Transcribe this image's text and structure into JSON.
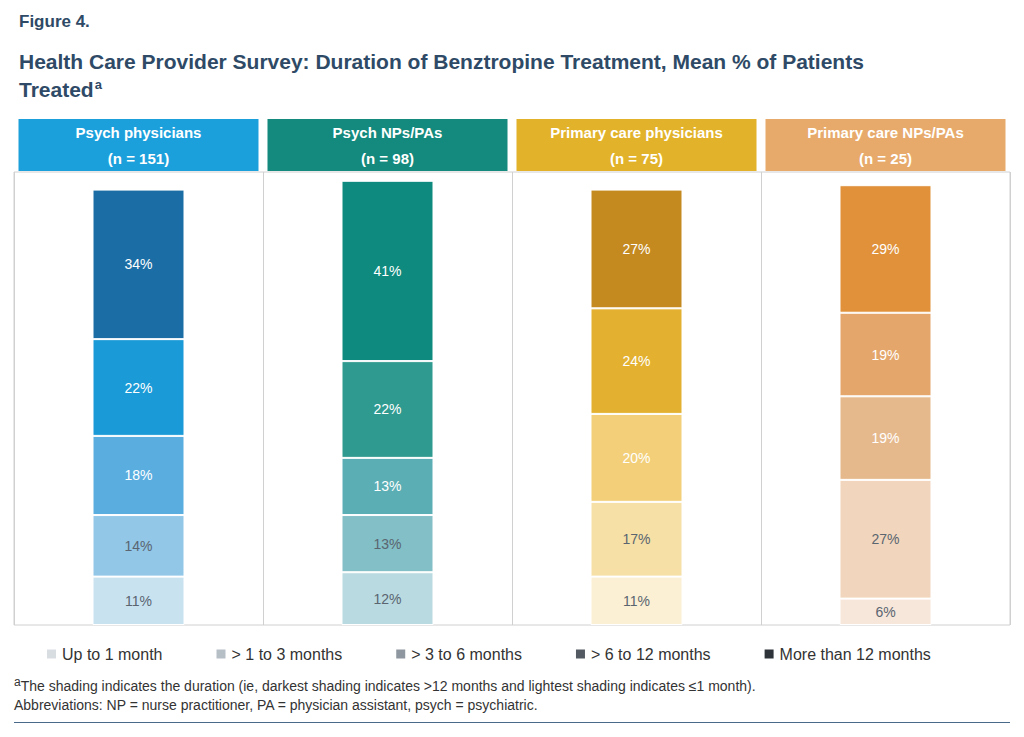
{
  "chart_data": {
    "type": "bar",
    "figure_label": "Figure 4.",
    "title": "Health Care Provider Survey: Duration of Benztropine Treatment, Mean % of Patients Treated",
    "title_marker": "a",
    "categories": [
      "Psych physicians (n = 151)",
      "Psych NPs/PAs (n = 98)",
      "Primary care physicians (n = 75)",
      "Primary care NPs/PAs (n = 25)"
    ],
    "series": [
      {
        "name": "Up to 1 month",
        "color": "#d8dde2",
        "colors": [
          "#c8e2f0",
          "#b9dae0",
          "#fbf0d4",
          "#f7e6da"
        ],
        "values": [
          11,
          12,
          11,
          6
        ],
        "value_labels": [
          "11%",
          "12%",
          "11%",
          "6%"
        ]
      },
      {
        "name": "> 1 to 3 months",
        "color": "#b6bec6",
        "colors": [
          "#92c7e8",
          "#83bfc6",
          "#f6e0a6",
          "#f1d6bd"
        ],
        "values": [
          14,
          13,
          17,
          27
        ],
        "value_labels": [
          "14%",
          "13%",
          "17%",
          "27%"
        ]
      },
      {
        "name": "> 3 to 6 months",
        "color": "#8e979f",
        "colors": [
          "#5aaedf",
          "#5aaeb4",
          "#f2cf78",
          "#e6b98d"
        ],
        "values": [
          18,
          13,
          20,
          19
        ],
        "value_labels": [
          "18%",
          "13%",
          "20%",
          "19%"
        ]
      },
      {
        "name": "> 6 to 12 months",
        "color": "#535a61",
        "colors": [
          "#1a9ad6",
          "#2f9a8f",
          "#e3b12f",
          "#e4a66a"
        ],
        "values": [
          22,
          22,
          24,
          19
        ],
        "value_labels": [
          "22%",
          "22%",
          "24%",
          "19%"
        ]
      },
      {
        "name": "More than 12 months",
        "color": "#2d3339",
        "colors": [
          "#1b6ea5",
          "#0e8a7e",
          "#c48a20",
          "#e0913a"
        ],
        "values": [
          34,
          41,
          27,
          29
        ],
        "value_labels": [
          "34%",
          "41%",
          "27%",
          "29%"
        ]
      }
    ],
    "stacked": true,
    "data_labels": true,
    "tick_labels": false,
    "ylim": [
      0,
      103
    ],
    "legend": "bottom",
    "footnote_marker": "a",
    "notes": [
      "The shading indicates the duration (ie, darkest shading indicates >12 months and lightest shading indicates ≤1 month).",
      "Abbreviations: NP = nurse practitioner, PA = physician assistant, psych = psychiatric."
    ]
  }
}
